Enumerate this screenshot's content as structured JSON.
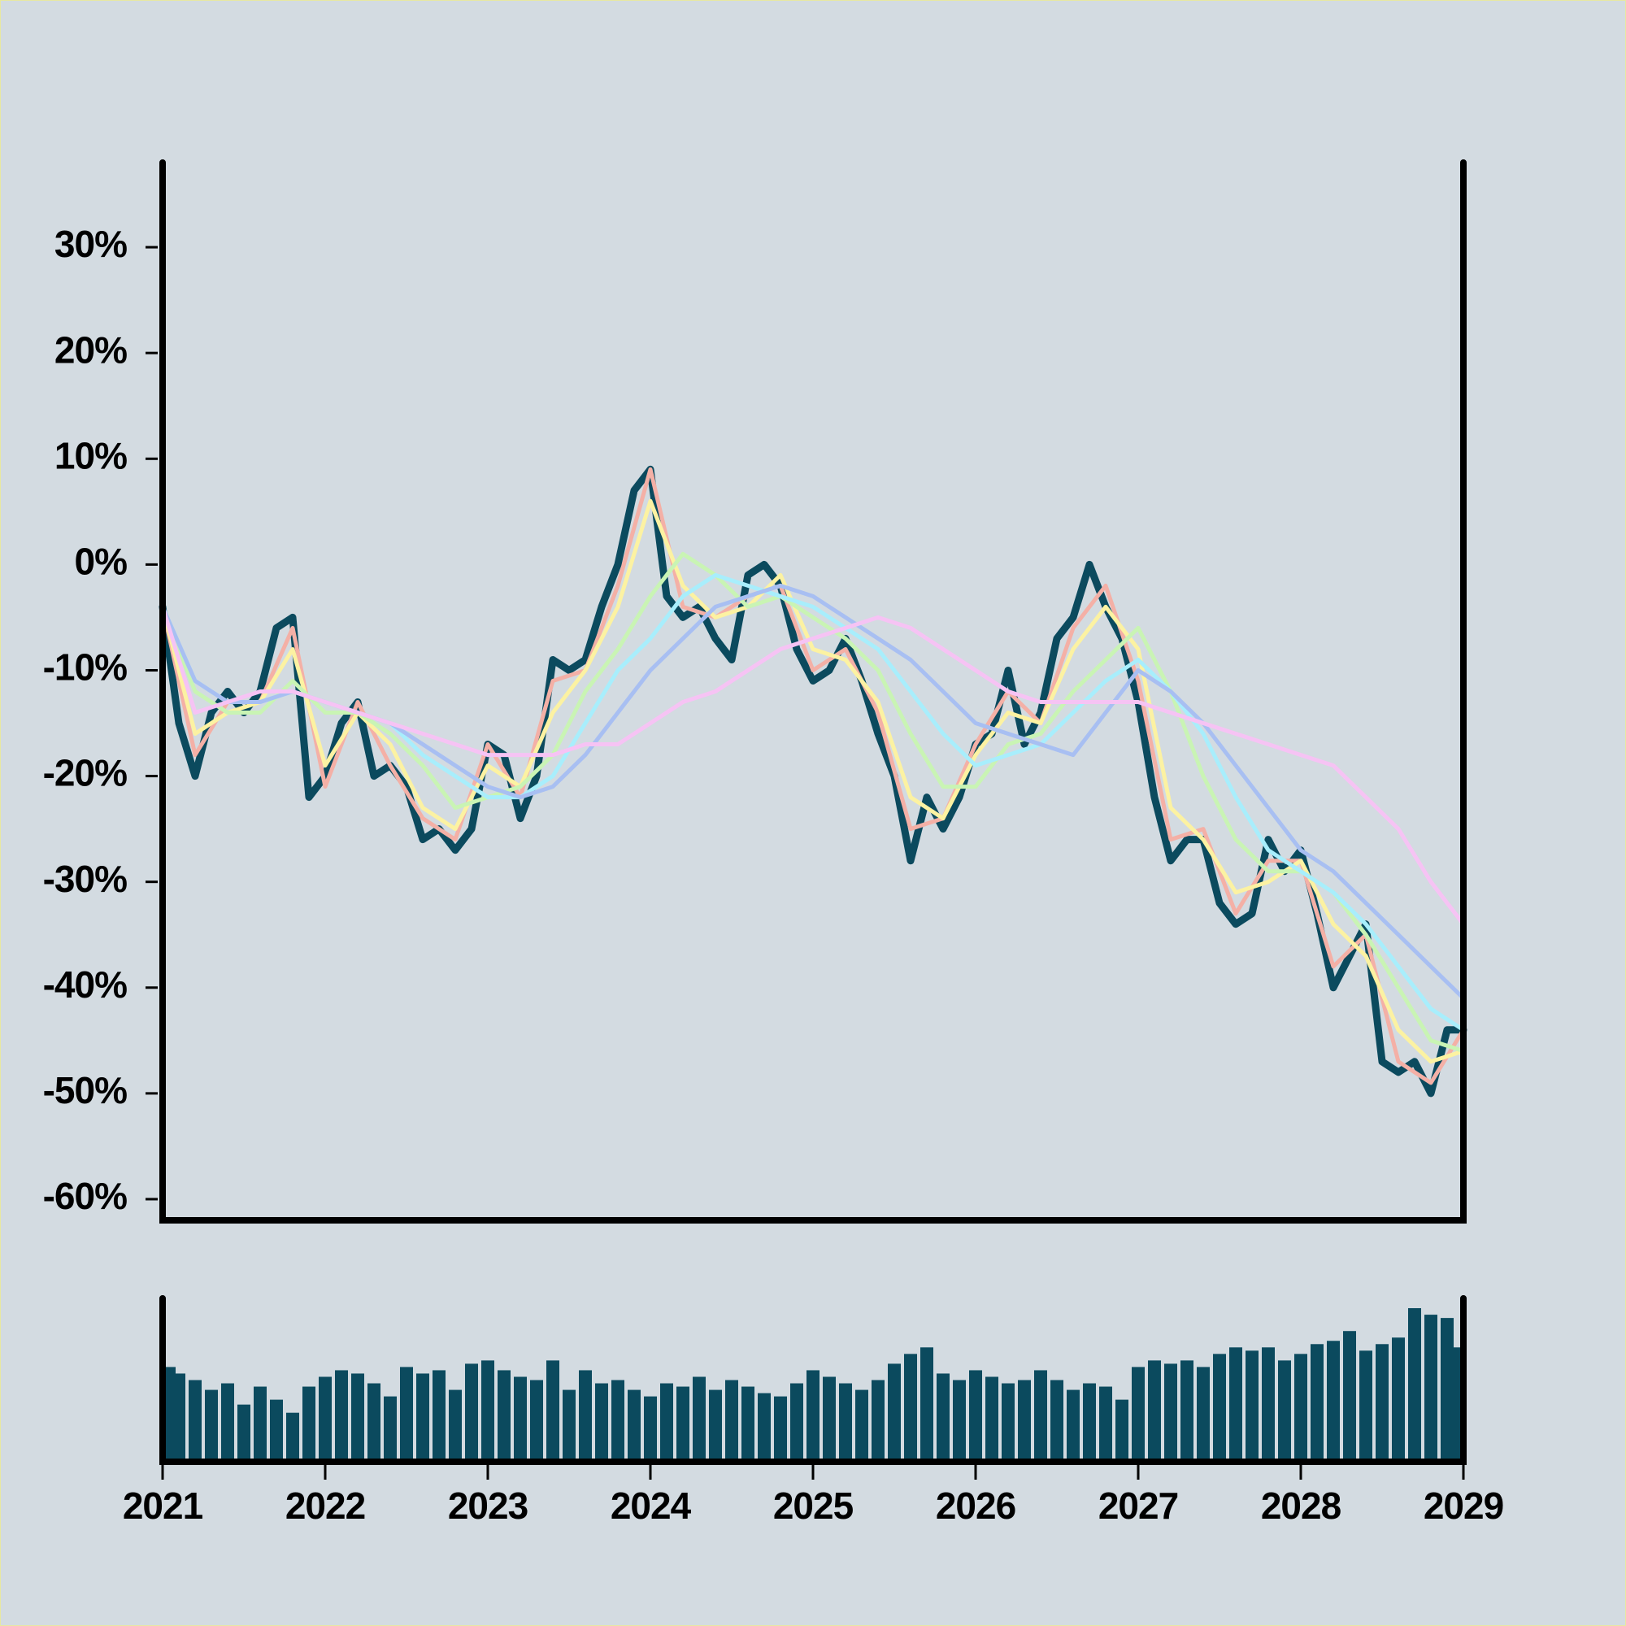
{
  "chart_data": [
    {
      "type": "line",
      "x": [
        2021,
        2021.1,
        2021.2,
        2021.3,
        2021.4,
        2021.5,
        2021.6,
        2021.7,
        2021.8,
        2021.9,
        2022,
        2022.1,
        2022.2,
        2022.3,
        2022.4,
        2022.5,
        2022.6,
        2022.7,
        2022.8,
        2022.9,
        2023,
        2023.1,
        2023.2,
        2023.3,
        2023.4,
        2023.5,
        2023.6,
        2023.7,
        2023.8,
        2023.9,
        2024,
        2024.1,
        2024.2,
        2024.3,
        2024.4,
        2024.5,
        2024.6,
        2024.7,
        2024.8,
        2024.9,
        2025,
        2025.1,
        2025.2,
        2025.3,
        2025.4,
        2025.5,
        2025.6,
        2025.7,
        2025.8,
        2025.9,
        2026,
        2026.1,
        2026.2,
        2026.3,
        2026.4,
        2026.5,
        2026.6,
        2026.7,
        2026.8,
        2026.9,
        2027,
        2027.1,
        2027.2,
        2027.3,
        2027.4,
        2027.5,
        2027.6,
        2027.7,
        2027.8,
        2027.9,
        2028,
        2028.1,
        2028.2,
        2028.3,
        2028.4,
        2028.5,
        2028.6,
        2028.7,
        2028.8,
        2028.9,
        2029
      ],
      "xlim": [
        2021,
        2029
      ],
      "ylim": [
        -62,
        38
      ],
      "yticks": [
        {
          "value": -60,
          "label": "-60%"
        },
        {
          "value": -50,
          "label": "-50%"
        },
        {
          "value": -40,
          "label": "-40%"
        },
        {
          "value": -30,
          "label": "-30%"
        },
        {
          "value": -20,
          "label": "-20%"
        },
        {
          "value": -10,
          "label": "-10%"
        },
        {
          "value": 0,
          "label": "0%"
        },
        {
          "value": 10,
          "label": "10%"
        },
        {
          "value": 20,
          "label": "20%"
        },
        {
          "value": 30,
          "label": "30%"
        }
      ],
      "series": [
        {
          "color": "#0b4a5e",
          "values": [
            -4,
            -15,
            -20,
            -14,
            -12,
            -14,
            -12,
            -6,
            -5,
            -22,
            -20,
            -15,
            -13,
            -20,
            -19,
            -21,
            -26,
            -25,
            -27,
            -25,
            -17,
            -18,
            -24,
            -20,
            -9,
            -10,
            -9,
            -4,
            0,
            7,
            9,
            -3,
            -5,
            -4,
            -7,
            -9,
            -1,
            0,
            -2,
            -8,
            -11,
            -10,
            -7,
            -11,
            -16,
            -20,
            -28,
            -22,
            -25,
            -22,
            -17,
            -16,
            -10,
            -17,
            -14,
            -7,
            -5,
            0,
            -4,
            -7,
            -13,
            -22,
            -28,
            -26,
            -26,
            -32,
            -34,
            -33,
            -26,
            -29,
            -27,
            -33,
            -40,
            -37,
            -34,
            -47,
            -48,
            -47,
            -50,
            -44,
            -44
          ]
        },
        {
          "color": "#f4b0a6",
          "x": [
            2021,
            2021.2,
            2021.4,
            2021.6,
            2021.8,
            2022,
            2022.2,
            2022.4,
            2022.6,
            2022.8,
            2023,
            2023.2,
            2023.4,
            2023.6,
            2023.8,
            2024,
            2024.2,
            2024.4,
            2024.6,
            2024.8,
            2025,
            2025.2,
            2025.4,
            2025.6,
            2025.8,
            2026,
            2026.2,
            2026.4,
            2026.6,
            2026.8,
            2027,
            2027.2,
            2027.4,
            2027.6,
            2027.8,
            2028,
            2028.2,
            2028.4,
            2028.6,
            2028.8,
            2029
          ],
          "values": [
            -4,
            -18,
            -13,
            -13,
            -6,
            -21,
            -13,
            -19,
            -24,
            -26,
            -17,
            -22,
            -11,
            -10,
            -2,
            9,
            -4,
            -5,
            -3,
            -2,
            -10,
            -8,
            -14,
            -25,
            -24,
            -17,
            -12,
            -15,
            -6,
            -2,
            -11,
            -26,
            -25,
            -33,
            -28,
            -28,
            -38,
            -35,
            -47,
            -49,
            -44
          ]
        },
        {
          "color": "#fcf2a2",
          "x": [
            2021,
            2021.2,
            2021.4,
            2021.6,
            2021.8,
            2022,
            2022.2,
            2022.4,
            2022.6,
            2022.8,
            2023,
            2023.2,
            2023.4,
            2023.6,
            2023.8,
            2024,
            2024.2,
            2024.4,
            2024.6,
            2024.8,
            2025,
            2025.2,
            2025.4,
            2025.6,
            2025.8,
            2026,
            2026.2,
            2026.4,
            2026.6,
            2026.8,
            2027,
            2027.2,
            2027.4,
            2027.6,
            2027.8,
            2028,
            2028.2,
            2028.4,
            2028.6,
            2028.8,
            2029
          ],
          "values": [
            -4,
            -16,
            -14,
            -13,
            -8,
            -19,
            -14,
            -17,
            -23,
            -25,
            -19,
            -21,
            -14,
            -10,
            -4,
            6,
            -2,
            -5,
            -4,
            -1,
            -8,
            -9,
            -13,
            -22,
            -24,
            -18,
            -14,
            -15,
            -8,
            -4,
            -8,
            -23,
            -26,
            -31,
            -30,
            -28,
            -34,
            -37,
            -44,
            -47,
            -46
          ]
        },
        {
          "color": "#c9f4b4",
          "x": [
            2021,
            2021.2,
            2021.4,
            2021.6,
            2021.8,
            2022,
            2022.2,
            2022.4,
            2022.6,
            2022.8,
            2023,
            2023.2,
            2023.4,
            2023.6,
            2023.8,
            2024,
            2024.2,
            2024.4,
            2024.6,
            2024.8,
            2025,
            2025.2,
            2025.4,
            2025.6,
            2025.8,
            2026,
            2026.2,
            2026.4,
            2026.6,
            2026.8,
            2027,
            2027.2,
            2027.4,
            2027.6,
            2027.8,
            2028,
            2028.2,
            2028.4,
            2028.6,
            2028.8,
            2029
          ],
          "values": [
            -4,
            -12,
            -14,
            -14,
            -11,
            -14,
            -14,
            -16,
            -19,
            -23,
            -22,
            -21,
            -18,
            -12,
            -8,
            -3,
            1,
            -1,
            -4,
            -3,
            -5,
            -7,
            -10,
            -16,
            -21,
            -21,
            -17,
            -16,
            -12,
            -9,
            -6,
            -12,
            -20,
            -26,
            -29,
            -29,
            -31,
            -35,
            -40,
            -45,
            -46
          ]
        },
        {
          "color": "#a8eefc",
          "x": [
            2021,
            2021.2,
            2021.4,
            2021.6,
            2021.8,
            2022,
            2022.2,
            2022.4,
            2022.6,
            2022.8,
            2023,
            2023.2,
            2023.4,
            2023.6,
            2023.8,
            2024,
            2024.2,
            2024.4,
            2024.6,
            2024.8,
            2025,
            2025.2,
            2025.4,
            2025.6,
            2025.8,
            2026,
            2026.2,
            2026.4,
            2026.6,
            2026.8,
            2027,
            2027.2,
            2027.4,
            2027.6,
            2027.8,
            2028,
            2028.2,
            2028.4,
            2028.6,
            2028.8,
            2029
          ],
          "values": [
            -4,
            -11,
            -13,
            -13,
            -12,
            -13,
            -14,
            -15,
            -18,
            -20,
            -22,
            -22,
            -20,
            -15,
            -10,
            -7,
            -3,
            -1,
            -2,
            -3,
            -4,
            -6,
            -8,
            -12,
            -16,
            -19,
            -18,
            -17,
            -14,
            -11,
            -9,
            -12,
            -16,
            -22,
            -27,
            -29,
            -31,
            -34,
            -38,
            -42,
            -44
          ]
        },
        {
          "color": "#a8bff2",
          "x": [
            2021,
            2021.2,
            2021.4,
            2021.6,
            2021.8,
            2022,
            2022.2,
            2022.4,
            2022.6,
            2022.8,
            2023,
            2023.2,
            2023.4,
            2023.6,
            2023.8,
            2024,
            2024.2,
            2024.4,
            2024.6,
            2024.8,
            2025,
            2025.2,
            2025.4,
            2025.6,
            2025.8,
            2026,
            2026.2,
            2026.4,
            2026.6,
            2026.8,
            2027,
            2027.2,
            2027.4,
            2027.6,
            2027.8,
            2028,
            2028.2,
            2028.4,
            2028.6,
            2028.8,
            2029
          ],
          "values": [
            -4,
            -11,
            -13,
            -13,
            -12,
            -13,
            -14,
            -15,
            -17,
            -19,
            -21,
            -22,
            -21,
            -18,
            -14,
            -10,
            -7,
            -4,
            -3,
            -2,
            -3,
            -5,
            -7,
            -9,
            -12,
            -15,
            -16,
            -17,
            -18,
            -14,
            -10,
            -12,
            -15,
            -19,
            -23,
            -27,
            -29,
            -32,
            -35,
            -38,
            -41
          ]
        },
        {
          "color": "#f6c3f4",
          "x": [
            2021,
            2021.2,
            2021.4,
            2021.6,
            2021.8,
            2022,
            2022.2,
            2022.4,
            2022.6,
            2022.8,
            2023,
            2023.2,
            2023.4,
            2023.6,
            2023.8,
            2024,
            2024.2,
            2024.4,
            2024.6,
            2024.8,
            2025,
            2025.2,
            2025.4,
            2025.6,
            2025.8,
            2026,
            2026.2,
            2026.4,
            2026.6,
            2026.8,
            2027,
            2027.2,
            2027.4,
            2027.6,
            2027.8,
            2028,
            2028.2,
            2028.4,
            2028.6,
            2028.8,
            2029
          ],
          "values": [
            -4,
            -14,
            -13,
            -12,
            -12,
            -13,
            -14,
            -15,
            -16,
            -17,
            -18,
            -18,
            -18,
            -17,
            -17,
            -15,
            -13,
            -12,
            -10,
            -8,
            -7,
            -6,
            -5,
            -6,
            -8,
            -10,
            -12,
            -13,
            -13,
            -13,
            -13,
            -14,
            -15,
            -16,
            -17,
            -18,
            -19,
            -22,
            -25,
            -30,
            -34
          ]
        }
      ]
    },
    {
      "type": "bar",
      "color": "#0b4a5e",
      "x": [
        2021,
        2021.1,
        2021.2,
        2021.3,
        2021.4,
        2021.5,
        2021.6,
        2021.7,
        2021.8,
        2021.9,
        2022,
        2022.1,
        2022.2,
        2022.3,
        2022.4,
        2022.5,
        2022.6,
        2022.7,
        2022.8,
        2022.9,
        2023,
        2023.1,
        2023.2,
        2023.3,
        2023.4,
        2023.5,
        2023.6,
        2023.7,
        2023.8,
        2023.9,
        2024,
        2024.1,
        2024.2,
        2024.3,
        2024.4,
        2024.5,
        2024.6,
        2024.7,
        2024.8,
        2024.9,
        2025,
        2025.1,
        2025.2,
        2025.3,
        2025.4,
        2025.5,
        2025.6,
        2025.7,
        2025.8,
        2025.9,
        2026,
        2026.1,
        2026.2,
        2026.3,
        2026.4,
        2026.5,
        2026.6,
        2026.7,
        2026.8,
        2026.9,
        2027,
        2027.1,
        2027.2,
        2027.3,
        2027.4,
        2027.5,
        2027.6,
        2027.7,
        2027.8,
        2027.9,
        2028,
        2028.1,
        2028.2,
        2028.3,
        2028.4,
        2028.5,
        2028.6,
        2028.7,
        2028.8,
        2028.9,
        2029
      ],
      "values": [
        58,
        54,
        50,
        44,
        48,
        35,
        46,
        38,
        30,
        46,
        52,
        56,
        54,
        48,
        40,
        58,
        54,
        56,
        44,
        60,
        62,
        56,
        52,
        50,
        62,
        44,
        56,
        48,
        50,
        44,
        40,
        48,
        46,
        52,
        44,
        50,
        46,
        42,
        40,
        48,
        56,
        52,
        48,
        44,
        50,
        60,
        66,
        70,
        54,
        50,
        56,
        52,
        48,
        50,
        56,
        50,
        44,
        48,
        46,
        38,
        58,
        62,
        60,
        62,
        58,
        66,
        70,
        68,
        70,
        62,
        66,
        72,
        74,
        80,
        68,
        72,
        76,
        94,
        90,
        88,
        70
      ],
      "xlim": [
        2021,
        2029
      ],
      "ylim": [
        0,
        100
      ],
      "xticks": [
        2021,
        2022,
        2023,
        2024,
        2025,
        2026,
        2027,
        2028,
        2029
      ]
    }
  ]
}
